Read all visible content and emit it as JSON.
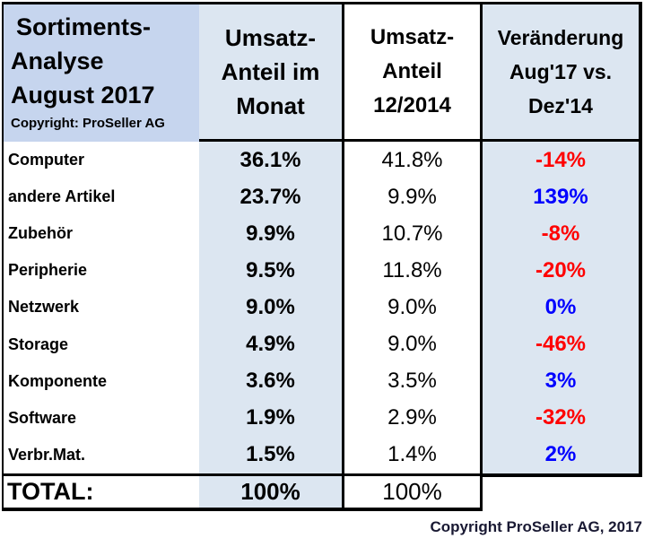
{
  "title": {
    "lines": [
      "Sortiments-",
      "Analyse",
      "August 2017"
    ],
    "copyright": "Copyright: ProSeller AG"
  },
  "columns": {
    "month_share": {
      "lines": [
        "Umsatz-",
        "Anteil im",
        "Monat"
      ]
    },
    "dec2014_share": {
      "lines": [
        "Umsatz-",
        "Anteil",
        "12/2014"
      ]
    },
    "change": {
      "lines": [
        "Veränderung",
        "Aug'17 vs.",
        "Dez'14"
      ]
    }
  },
  "rows": [
    {
      "label": "Computer",
      "month": "36.1%",
      "dec2014": "41.8%",
      "change": "-14%",
      "change_color": "negative"
    },
    {
      "label": "andere Artikel",
      "month": "23.7%",
      "dec2014": "9.9%",
      "change": "139%",
      "change_color": "positive"
    },
    {
      "label": "Zubehör",
      "month": "9.9%",
      "dec2014": "10.7%",
      "change": "-8%",
      "change_color": "negative"
    },
    {
      "label": "Peripherie",
      "month": "9.5%",
      "dec2014": "11.8%",
      "change": "-20%",
      "change_color": "negative"
    },
    {
      "label": "Netzwerk",
      "month": "9.0%",
      "dec2014": "9.0%",
      "change": "0%",
      "change_color": "positive"
    },
    {
      "label": "Storage",
      "month": "4.9%",
      "dec2014": "9.0%",
      "change": "-46%",
      "change_color": "negative"
    },
    {
      "label": "Komponente",
      "month": "3.6%",
      "dec2014": "3.5%",
      "change": "3%",
      "change_color": "positive"
    },
    {
      "label": "Software",
      "month": "1.9%",
      "dec2014": "2.9%",
      "change": "-32%",
      "change_color": "negative"
    },
    {
      "label": "Verbr.Mat.",
      "month": "1.5%",
      "dec2014": "1.4%",
      "change": "2%",
      "change_color": "positive"
    }
  ],
  "total": {
    "label": "TOTAL:",
    "month": "100%",
    "dec2014": "100%"
  },
  "footer": "Copyright ProSeller AG, 2017",
  "colors": {
    "title_bg": "#c6d5ee",
    "accent_bg": "#dce6f1",
    "negative": "#ff0000",
    "positive": "#0000ff",
    "border": "#000000",
    "footer_text": "#191933"
  },
  "chart_data": {
    "type": "table",
    "title": "Sortiments-Analyse August 2017",
    "categories": [
      "Computer",
      "andere Artikel",
      "Zubehör",
      "Peripherie",
      "Netzwerk",
      "Storage",
      "Komponente",
      "Software",
      "Verbr.Mat."
    ],
    "series": [
      {
        "name": "Umsatz-Anteil im Monat",
        "unit": "%",
        "values": [
          36.1,
          23.7,
          9.9,
          9.5,
          9.0,
          4.9,
          3.6,
          1.9,
          1.5
        ],
        "total": 100
      },
      {
        "name": "Umsatz-Anteil 12/2014",
        "unit": "%",
        "values": [
          41.8,
          9.9,
          10.7,
          11.8,
          9.0,
          9.0,
          3.5,
          2.9,
          1.4
        ],
        "total": 100
      },
      {
        "name": "Veränderung Aug'17 vs. Dez'14",
        "unit": "%",
        "values": [
          -14,
          139,
          -8,
          -20,
          0,
          -46,
          3,
          -32,
          2
        ]
      }
    ]
  }
}
